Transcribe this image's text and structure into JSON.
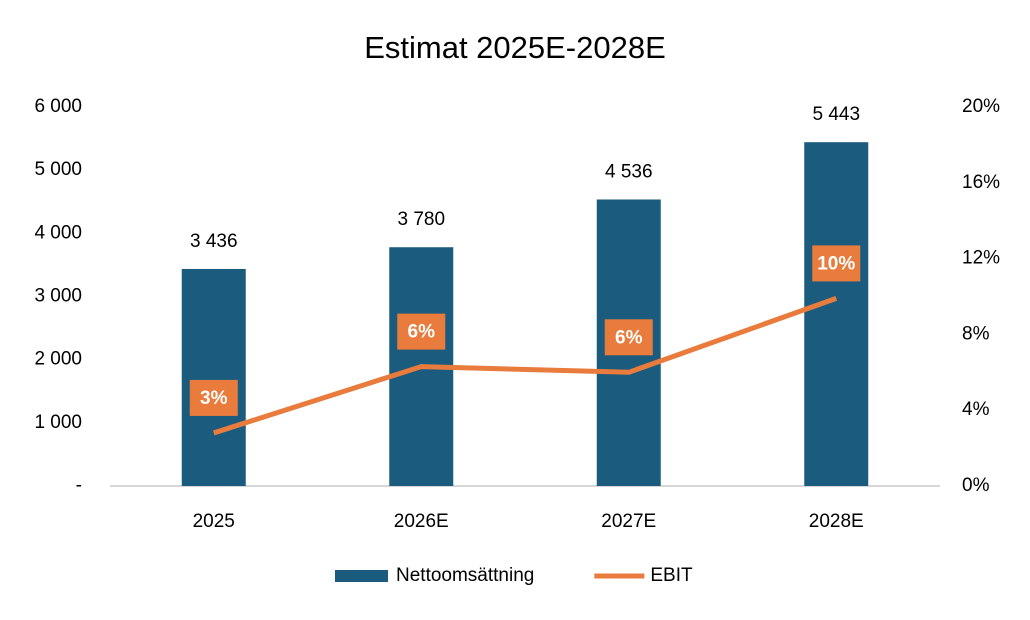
{
  "chart_data": {
    "type": "bar",
    "title": "Estimat 2025E-2028E",
    "categories": [
      "2025",
      "2026E",
      "2027E",
      "2028E"
    ],
    "series": [
      {
        "name": "Nettoomsättning",
        "type": "bar",
        "color": "#1b5c7e",
        "values": [
          3436,
          3780,
          4536,
          5443
        ],
        "value_labels": [
          "3 436",
          "3 780",
          "4 536",
          "5 443"
        ]
      },
      {
        "name": "EBIT",
        "type": "line",
        "axis": "y2",
        "color": "#e97b3c",
        "values": [
          2.8,
          6.3,
          6.0,
          9.9
        ],
        "value_labels": [
          "3%",
          "6%",
          "6%",
          "10%"
        ]
      }
    ],
    "ylim": [
      0,
      6000
    ],
    "yticks": [
      {
        "value": 0,
        "label": "-"
      },
      {
        "value": 1000,
        "label": "1 000"
      },
      {
        "value": 2000,
        "label": "2 000"
      },
      {
        "value": 3000,
        "label": "3 000"
      },
      {
        "value": 4000,
        "label": "4 000"
      },
      {
        "value": 5000,
        "label": "5 000"
      },
      {
        "value": 6000,
        "label": "6 000"
      }
    ],
    "y2lim": [
      0,
      20
    ],
    "y2ticks": [
      {
        "value": 0,
        "label": "0%"
      },
      {
        "value": 4,
        "label": "4%"
      },
      {
        "value": 8,
        "label": "8%"
      },
      {
        "value": 12,
        "label": "12%"
      },
      {
        "value": 16,
        "label": "16%"
      },
      {
        "value": 20,
        "label": "20%"
      }
    ],
    "grid": false,
    "legend": "bottom"
  }
}
